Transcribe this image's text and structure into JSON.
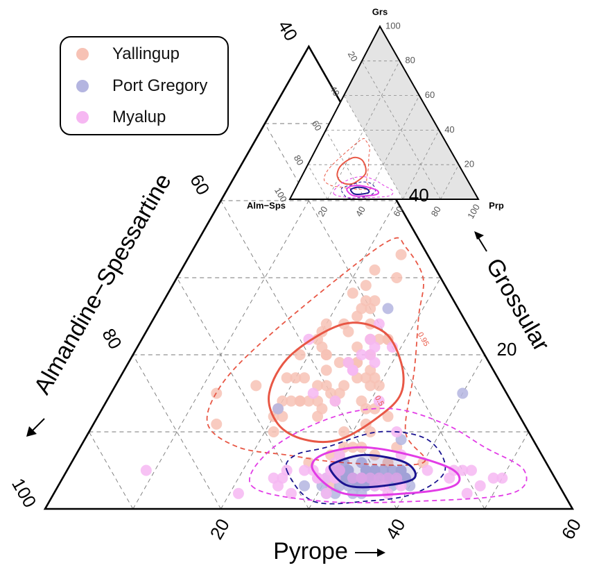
{
  "chart_data": {
    "type": "scatter",
    "subtype": "ternary",
    "axes": {
      "left": {
        "label": "Almandine−Spessartine",
        "ticks": [
          "40",
          "60",
          "80",
          "100"
        ]
      },
      "right": {
        "label": "Grossular",
        "ticks": [
          "20",
          "40"
        ]
      },
      "bottom": {
        "label": "Pyrope",
        "ticks": [
          "20",
          "40",
          "60"
        ]
      }
    },
    "range": {
      "grs": [
        0,
        60
      ],
      "prp": [
        0,
        60
      ],
      "alm_sps": [
        40,
        100
      ]
    },
    "grid": true,
    "legend": {
      "position": "top-left"
    },
    "series": [
      {
        "name": "Yallingup",
        "color": "#f7c2b5",
        "points": [
          [
            30,
            7
          ],
          [
            27,
            22
          ],
          [
            25,
            12
          ],
          [
            26,
            15
          ],
          [
            20,
            17
          ],
          [
            26,
            14
          ],
          [
            22,
            20
          ],
          [
            31,
            3
          ],
          [
            12,
            15
          ],
          [
            24,
            14
          ],
          [
            34,
            7
          ],
          [
            24,
            33
          ],
          [
            27,
            20
          ],
          [
            28,
            17
          ],
          [
            29,
            16
          ],
          [
            36,
            8
          ],
          [
            40,
            6
          ],
          [
            25,
            30
          ],
          [
            29,
            17
          ],
          [
            25,
            15
          ],
          [
            20,
            22
          ],
          [
            32,
            4
          ],
          [
            23,
            27
          ],
          [
            30,
            13
          ],
          [
            14,
            11
          ],
          [
            21,
            10
          ],
          [
            23,
            25
          ],
          [
            26,
            19
          ],
          [
            20,
            14
          ],
          [
            26,
            16
          ],
          [
            28,
            18
          ],
          [
            23,
            16
          ],
          [
            31,
            13
          ],
          [
            24,
            19
          ],
          [
            21,
            14
          ],
          [
            33,
            12
          ],
          [
            22,
            24
          ],
          [
            30,
            8
          ],
          [
            31,
            11
          ],
          [
            16,
            16
          ],
          [
            22,
            14
          ],
          [
            21,
            17
          ],
          [
            21,
            28
          ],
          [
            25,
            21
          ],
          [
            22,
            14
          ],
          [
            32,
            8
          ],
          [
            21,
            12
          ],
          [
            20,
            23
          ],
          [
            25,
            19
          ],
          [
            23,
            23
          ],
          [
            20,
            13
          ],
          [
            22,
            29
          ],
          [
            22,
            20
          ],
          [
            27,
            6
          ],
          [
            24,
            27
          ],
          [
            26,
            22
          ],
          [
            20,
            24
          ],
          [
            25,
            13
          ],
          [
            21,
            21
          ],
          [
            25,
            24
          ],
          [
            36,
            6
          ],
          [
            32,
            10
          ],
          [
            29,
            7
          ],
          [
            23,
            14
          ],
          [
            24,
            16
          ],
          [
            29,
            14
          ],
          [
            28,
            22
          ],
          [
            19,
            20
          ],
          [
            24,
            26
          ],
          [
            30,
            16
          ],
          [
            26,
            19
          ],
          [
            31,
            8
          ],
          [
            28,
            22
          ],
          [
            23,
            26
          ],
          [
            19,
            17
          ],
          [
            29,
            10
          ],
          [
            22,
            31
          ],
          [
            23,
            18
          ],
          [
            20,
            12
          ],
          [
            27,
            17
          ]
        ]
      },
      {
        "name": "Port Gregory",
        "color": "#b4b5e0",
        "points": [
          [
            31,
            2
          ],
          [
            20,
            13
          ],
          [
            31,
            6
          ],
          [
            40,
            15
          ],
          [
            54,
            11
          ],
          [
            26,
            26
          ],
          [
            36,
            9
          ],
          [
            35,
            5
          ],
          [
            36,
            5
          ],
          [
            32,
            2
          ],
          [
            33,
            3
          ],
          [
            34,
            3
          ],
          [
            35,
            4
          ],
          [
            30,
            4
          ],
          [
            31,
            4
          ],
          [
            36,
            3
          ],
          [
            31,
            5
          ],
          [
            38,
            5
          ],
          [
            35,
            4
          ],
          [
            35,
            3
          ],
          [
            34,
            5
          ],
          [
            33,
            4
          ],
          [
            35,
            5
          ],
          [
            32,
            4
          ],
          [
            39,
            4
          ],
          [
            39,
            4
          ],
          [
            33,
            6
          ],
          [
            34,
            3
          ],
          [
            38,
            3
          ],
          [
            37,
            4
          ],
          [
            32,
            5
          ],
          [
            38,
            5
          ],
          [
            38,
            4
          ],
          [
            34,
            3
          ],
          [
            37,
            4
          ],
          [
            34,
            3
          ],
          [
            36,
            3
          ],
          [
            34,
            4
          ],
          [
            31,
            5
          ],
          [
            30,
            4
          ],
          [
            35,
            2
          ],
          [
            28,
            3
          ],
          [
            37,
            5
          ],
          [
            29,
            4
          ],
          [
            36,
            3
          ],
          [
            32,
            5
          ],
          [
            34,
            5
          ],
          [
            40,
            3
          ],
          [
            39,
            4
          ],
          [
            33,
            4
          ],
          [
            35,
            3
          ],
          [
            30,
            3
          ],
          [
            32,
            4
          ],
          [
            33,
            4
          ],
          [
            34,
            4
          ],
          [
            34,
            2
          ],
          [
            32,
            3
          ],
          [
            36,
            4
          ],
          [
            37,
            4
          ],
          [
            33,
            4
          ]
        ]
      },
      {
        "name": "Myalup",
        "color": "#f6b7f2",
        "points": [
          [
            48,
            3
          ],
          [
            35,
            10
          ],
          [
            19,
            22
          ],
          [
            27,
            21
          ],
          [
            26,
            18
          ],
          [
            27,
            20
          ],
          [
            26,
            14
          ],
          [
            26,
            24
          ],
          [
            27,
            2
          ],
          [
            30,
            6
          ],
          [
            31,
            5
          ],
          [
            30,
            5
          ],
          [
            34,
            4
          ],
          [
            34,
            4
          ],
          [
            29,
            4
          ],
          [
            47,
            2
          ],
          [
            31,
            5
          ],
          [
            29,
            4
          ],
          [
            31,
            4
          ],
          [
            30,
            7
          ],
          [
            49,
            4
          ],
          [
            26,
            20
          ],
          [
            25,
            19
          ],
          [
            28,
            19
          ],
          [
            37,
            7
          ],
          [
            24,
            4
          ],
          [
            35,
            4
          ],
          [
            37,
            4
          ],
          [
            41,
            5
          ],
          [
            37,
            3
          ],
          [
            34,
            4
          ],
          [
            31,
            5
          ],
          [
            39,
            3
          ],
          [
            46,
            5
          ],
          [
            25,
            4
          ],
          [
            26,
            18
          ],
          [
            29,
            21
          ],
          [
            38,
            4
          ],
          [
            9,
            5
          ],
          [
            45,
            5
          ],
          [
            25,
            5
          ],
          [
            38,
            2
          ],
          [
            31,
            5
          ],
          [
            30,
            4
          ],
          [
            26,
            22
          ],
          [
            23,
            15
          ],
          [
            31,
            2
          ],
          [
            30,
            5
          ],
          [
            25,
            3
          ],
          [
            21,
            2
          ],
          [
            50,
            4
          ],
          [
            36,
            3
          ],
          [
            31,
            4
          ],
          [
            44,
            4
          ],
          [
            36,
            4
          ],
          [
            27,
            5
          ],
          [
            33,
            4
          ],
          [
            28,
            5
          ],
          [
            44,
            5
          ],
          [
            31,
            14
          ]
        ]
      }
    ],
    "contours": [
      {
        "series": "Yallingup",
        "level": "0.5",
        "color": "#e85745",
        "dash": false,
        "points": [
          [
            29,
            9
          ],
          [
            32,
            12
          ],
          [
            33,
            15
          ],
          [
            31,
            19
          ],
          [
            27,
            23
          ],
          [
            22,
            24
          ],
          [
            18,
            20
          ],
          [
            18,
            15
          ],
          [
            21,
            11
          ],
          [
            25,
            9
          ]
        ]
      },
      {
        "series": "Yallingup",
        "level": "0.95",
        "color": "#e85745",
        "dash": true,
        "points": [
          [
            40,
            6
          ],
          [
            36,
            10
          ],
          [
            33,
            18
          ],
          [
            30,
            25
          ],
          [
            28,
            30
          ],
          [
            24,
            34
          ],
          [
            22,
            35
          ],
          [
            19,
            31
          ],
          [
            14,
            22
          ],
          [
            12,
            16
          ],
          [
            13,
            11
          ],
          [
            18,
            8
          ],
          [
            24,
            7
          ],
          [
            31,
            6
          ]
        ]
      },
      {
        "series": "Port Gregory",
        "level": "0.5",
        "color": "#1a1390",
        "dash": false,
        "points": [
          [
            30,
            5
          ],
          [
            33,
            3
          ],
          [
            37,
            3
          ],
          [
            40,
            4
          ],
          [
            38,
            6
          ],
          [
            33,
            7
          ],
          [
            30,
            6
          ]
        ]
      },
      {
        "series": "Port Gregory",
        "level": "0.95",
        "color": "#1a1390",
        "dash": true,
        "points": [
          [
            25,
            5
          ],
          [
            30,
            1
          ],
          [
            36,
            1
          ],
          [
            41,
            2
          ],
          [
            43,
            5
          ],
          [
            39,
            9
          ],
          [
            33,
            10
          ],
          [
            28,
            8
          ],
          [
            25,
            7
          ]
        ]
      },
      {
        "series": "Myalup",
        "level": "0.5",
        "color": "#e23ce6",
        "dash": false,
        "points": [
          [
            28,
            5
          ],
          [
            33,
            2
          ],
          [
            40,
            2
          ],
          [
            45,
            3
          ],
          [
            44,
            5
          ],
          [
            38,
            7
          ],
          [
            32,
            8
          ],
          [
            28,
            7
          ]
        ]
      },
      {
        "series": "Myalup",
        "level": "0.95",
        "color": "#e23ce6",
        "dash": true,
        "points": [
          [
            22,
            3
          ],
          [
            31,
            1
          ],
          [
            42,
            1
          ],
          [
            52,
            2
          ],
          [
            52,
            5
          ],
          [
            46,
            8
          ],
          [
            40,
            11
          ],
          [
            33,
            13
          ],
          [
            27,
            12
          ],
          [
            22,
            8
          ]
        ]
      }
    ],
    "contour_labels": [
      {
        "text": "0.95",
        "series": "Yallingup",
        "prp": 32,
        "grs": 22
      },
      {
        "text": "0.5",
        "series": "Yallingup",
        "prp": 31,
        "grs": 14
      }
    ],
    "inset": {
      "corners": {
        "top": "Grs",
        "left": "Alm−Sps",
        "right": "Prp"
      },
      "ticks": [
        "20",
        "40",
        "60",
        "80",
        "100"
      ],
      "shaded_region": "Grs 0–100, Prp 0–100, Alm−Sps 40–100 outside main window"
    }
  }
}
